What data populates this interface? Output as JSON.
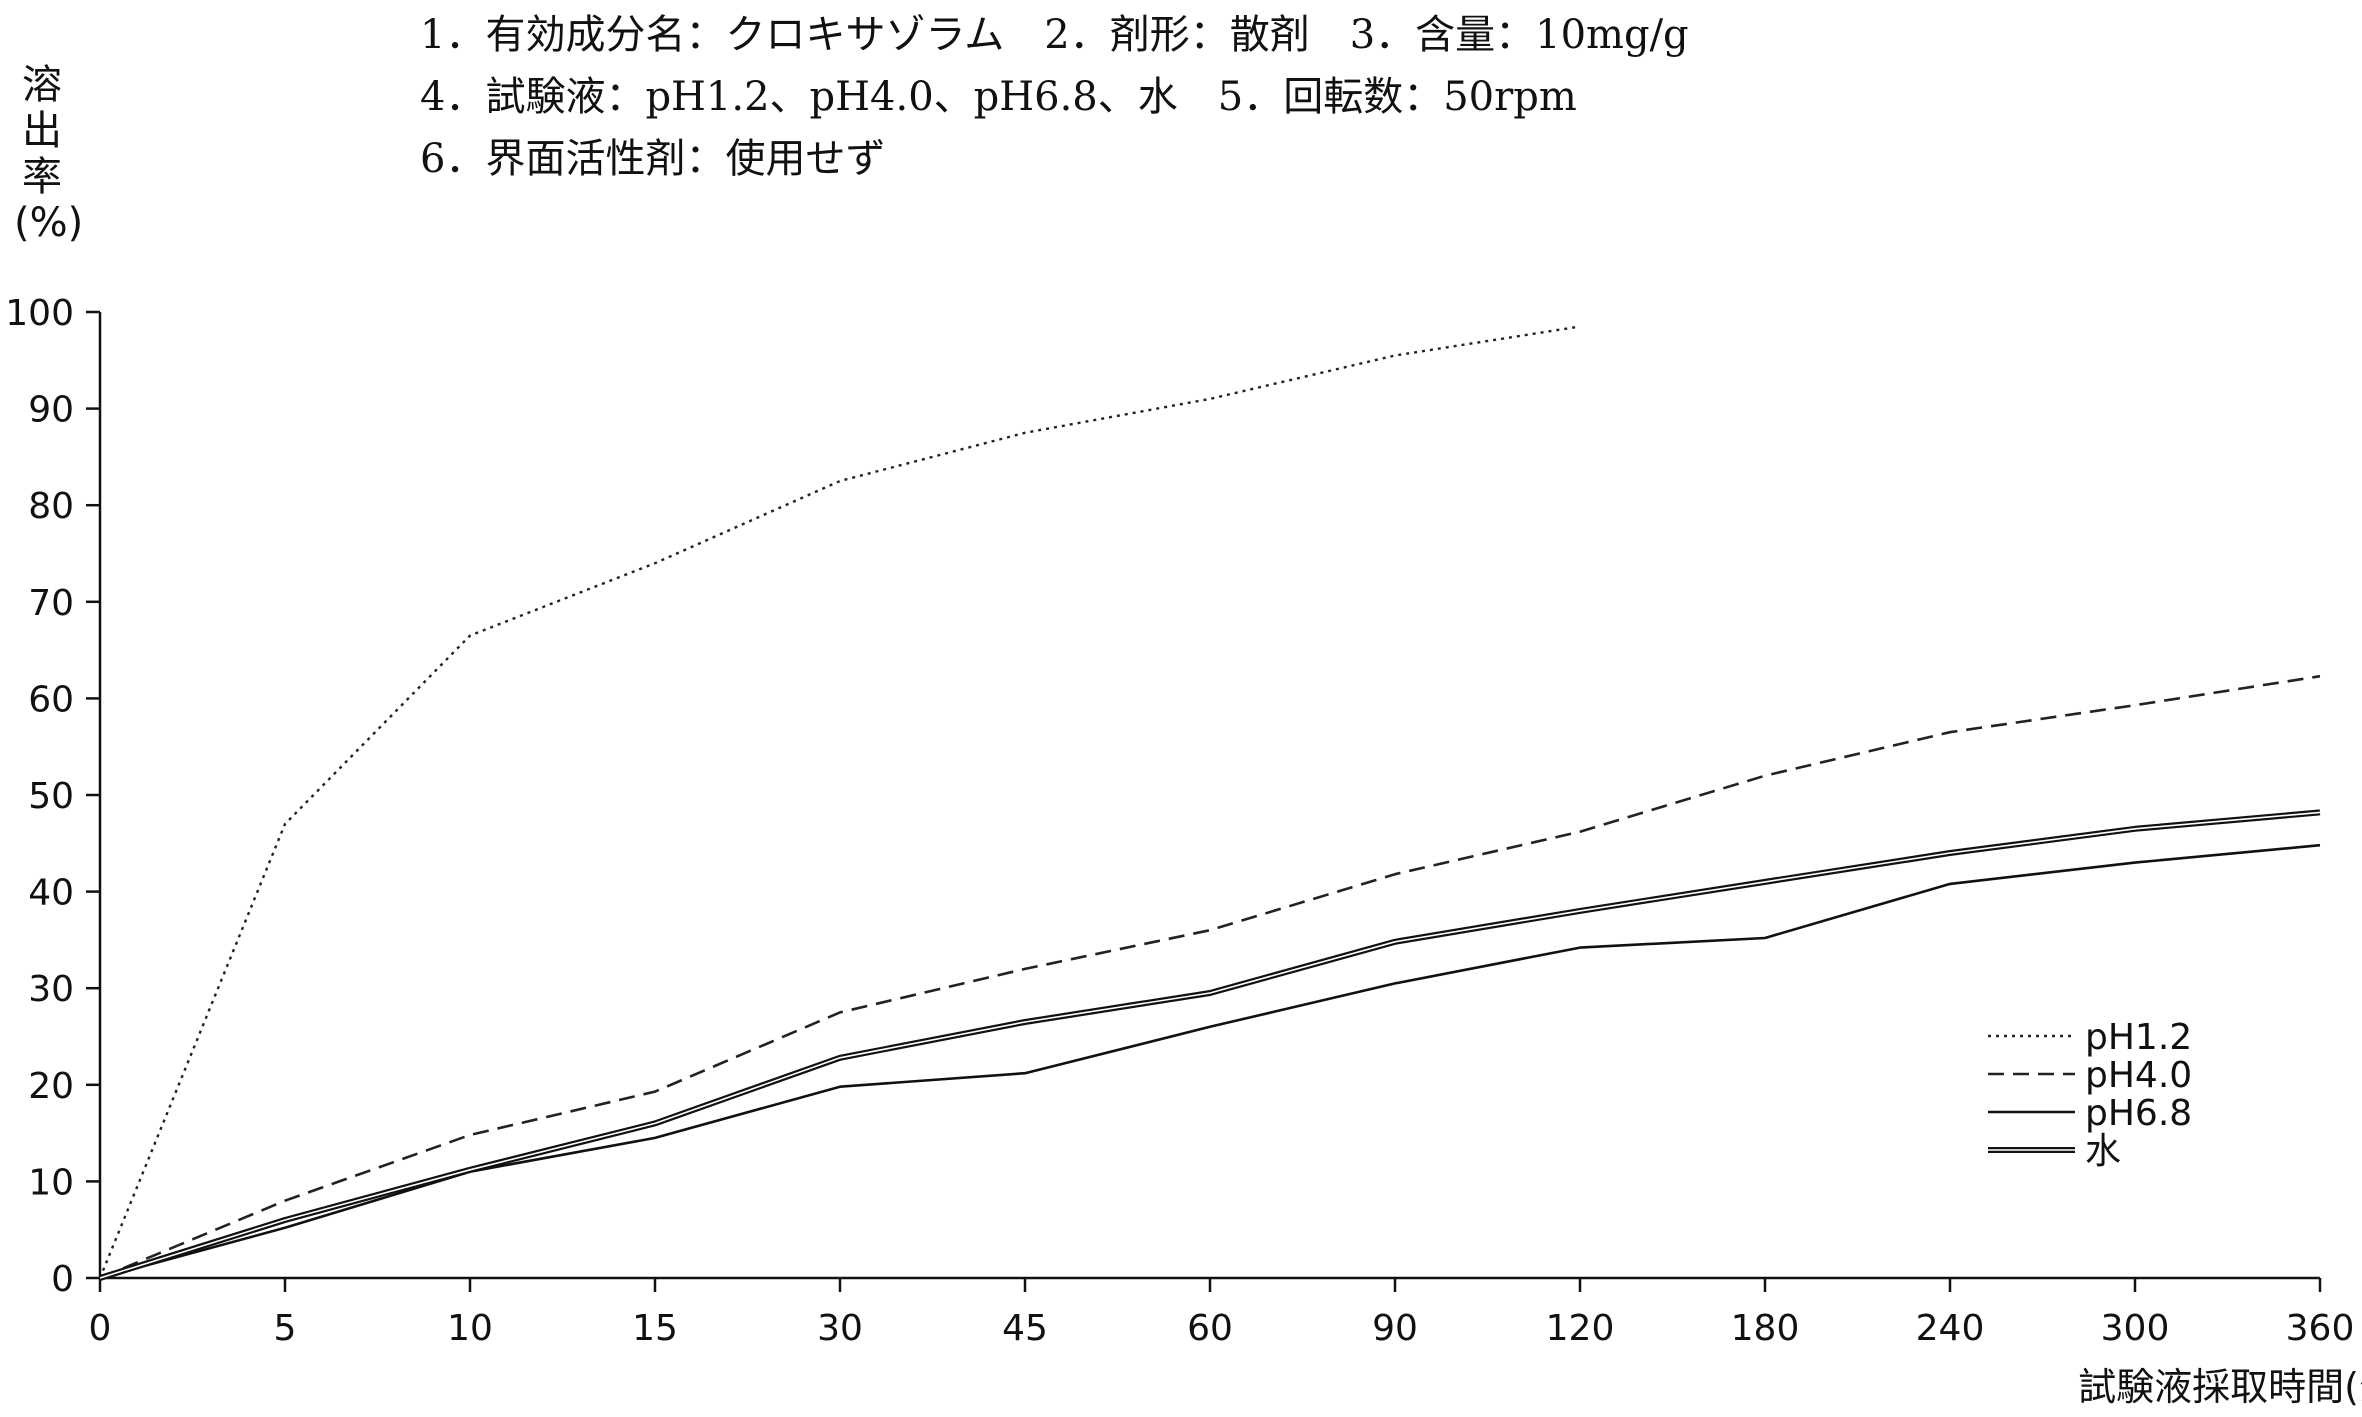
{
  "header": {
    "line1": "1．有効成分名：クロキサゾラム　2．剤形：散剤　3．含量：10mg/g",
    "line2": "4．試験液：pH1.2、pH4.0、pH6.8、水　5．回転数：50rpm",
    "line3": "6．界面活性剤：使用せず"
  },
  "chart_data": {
    "type": "line",
    "title": "",
    "xlabel": "試験液採取時間(分)",
    "ylabel": [
      "溶",
      "出",
      "率",
      "(%)"
    ],
    "categories": [
      "0",
      "5",
      "10",
      "15",
      "30",
      "45",
      "60",
      "90",
      "120",
      "180",
      "240",
      "300",
      "360"
    ],
    "yticks": [
      0,
      10,
      20,
      30,
      40,
      50,
      60,
      70,
      80,
      90,
      100
    ],
    "ylim": [
      0,
      100
    ],
    "grid": false,
    "legend_position": "right",
    "series": [
      {
        "name": "pH1.2",
        "style": "dotted",
        "values": [
          0,
          47,
          66.5,
          74,
          82.5,
          87.5,
          91,
          95.5,
          98.5,
          null,
          null,
          null,
          null
        ]
      },
      {
        "name": "pH4.0",
        "style": "dashed",
        "values": [
          0,
          8,
          14.8,
          19.3,
          27.5,
          32,
          36,
          41.8,
          46.2,
          52,
          56.5,
          59.3,
          62.3
        ]
      },
      {
        "name": "pH6.8",
        "style": "solid",
        "values": [
          0,
          5.2,
          11,
          14.5,
          19.8,
          21.2,
          26,
          30.5,
          34.2,
          35.2,
          40.8,
          43,
          44.8
        ]
      },
      {
        "name": "水",
        "style": "double",
        "values": [
          0,
          6,
          11.2,
          16,
          22.8,
          26.5,
          29.5,
          34.8,
          38,
          41,
          44,
          46.5,
          48.2
        ]
      }
    ]
  }
}
